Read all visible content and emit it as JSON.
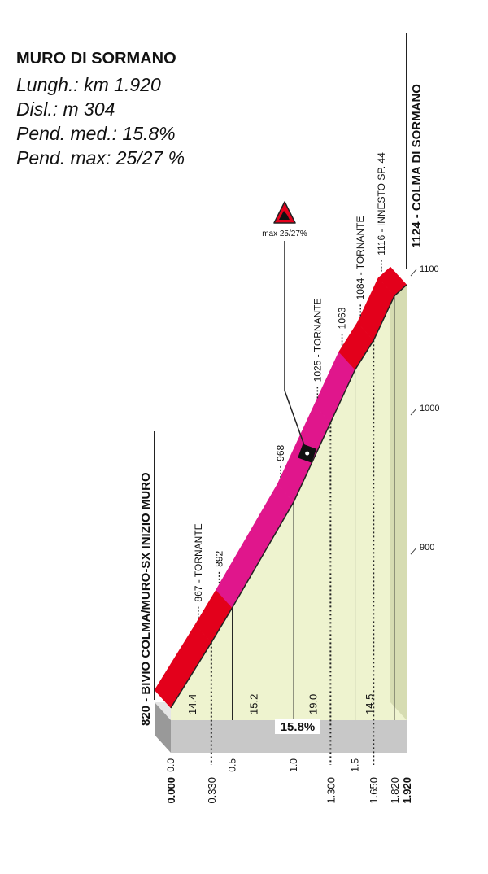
{
  "chart_data": {
    "type": "climb-profile",
    "title": "MURO DI SORMANO",
    "info": [
      "Lungh.: km 1.920",
      "Disl.: m 304",
      "Pend. med.: 15.8%",
      "Pend. max: 25/27 %"
    ],
    "x": [
      0,
      0.33,
      0.5,
      1.0,
      1.3,
      1.5,
      1.65,
      1.82,
      1.92
    ],
    "altitudes": [
      820,
      867,
      892,
      968,
      1025,
      1063,
      1084,
      1116,
      1124
    ],
    "point_labels": [
      "820 - BIVIO COLMA/MURO-SX INIZIO MURO",
      "867 - TORNANTE",
      "892",
      "968",
      "1025 - TORNANTE",
      "1063",
      "1084 - TORNANTE",
      "1116 - INNESTO SP. 44",
      "1124 - COLMA DI SORMANO"
    ],
    "segment_colors": [
      "#e3001b",
      "#e3001b",
      "#e0168c",
      "#e0168c",
      "#e0168c",
      "#e3001b",
      "#e3001b",
      "#e3001b"
    ],
    "gradients": {
      "values": [
        14.4,
        15.2,
        19.0,
        14.5
      ],
      "value_labels": [
        "14.4",
        "15.2",
        "19.0",
        "14.5"
      ]
    },
    "average_label": "15.8%",
    "max_label": "max 25/27%",
    "xlim": [
      0,
      1.92
    ],
    "ylim": [
      820,
      1124
    ],
    "xticks": [
      {
        "value": 0,
        "label": "0.0"
      },
      0.5,
      {
        "value": 1,
        "label": "1.0"
      },
      1.5
    ],
    "distance_marks": [
      {
        "value": 0,
        "label": "0.000"
      },
      {
        "value": 0.33,
        "label": "0.330"
      },
      {
        "value": 1.3,
        "label": "1.300"
      },
      {
        "value": 1.65,
        "label": "1.650"
      },
      {
        "value": 1.82,
        "label": "1.820"
      },
      {
        "value": 1.92,
        "label": "1.920"
      }
    ],
    "yticks": [
      900,
      1000,
      1100
    ],
    "area_color": "#eef3cf",
    "base_color": "#c8c8c8"
  }
}
